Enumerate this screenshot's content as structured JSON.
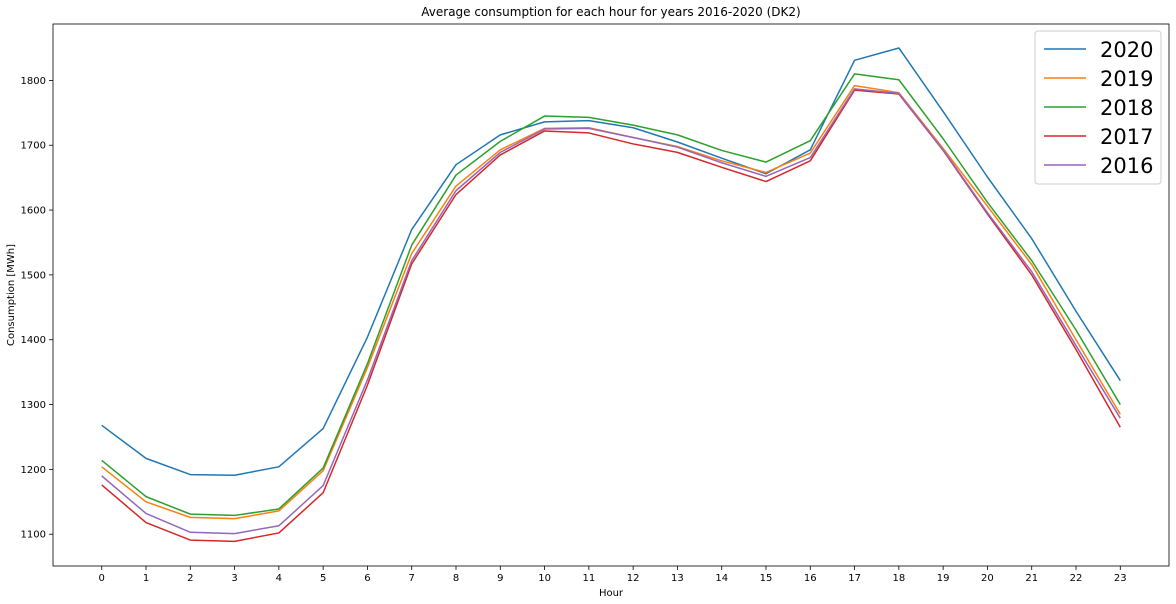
{
  "chart_data": {
    "type": "line",
    "title": "Average consumption for each hour for years 2016-2020 (DK2)",
    "xlabel": "Hour",
    "ylabel": "Consumption [MWh]",
    "x": [
      0,
      1,
      2,
      3,
      4,
      5,
      6,
      7,
      8,
      9,
      10,
      11,
      12,
      13,
      14,
      15,
      16,
      17,
      18,
      19,
      20,
      21,
      22,
      23
    ],
    "xlim": [
      -1.1,
      24.1
    ],
    "ylim": [
      1051,
      1887
    ],
    "yticks": [
      1100,
      1200,
      1300,
      1400,
      1500,
      1600,
      1700,
      1800
    ],
    "grid": false,
    "legend_position": "top-right",
    "series": [
      {
        "name": "2020",
        "color": "#1f77b4",
        "values": [
          1268,
          1217,
          1192,
          1191,
          1204,
          1263,
          1404,
          1570,
          1670,
          1716,
          1736,
          1738,
          1727,
          1705,
          1680,
          1656,
          1693,
          1831,
          1850,
          1752,
          1651,
          1556,
          1444,
          1337
        ]
      },
      {
        "name": "2019",
        "color": "#ff7f0e",
        "values": [
          1204,
          1150,
          1126,
          1124,
          1136,
          1198,
          1357,
          1533,
          1637,
          1693,
          1726,
          1727,
          1712,
          1698,
          1676,
          1658,
          1688,
          1792,
          1781,
          1695,
          1606,
          1516,
          1400,
          1285
        ]
      },
      {
        "name": "2018",
        "color": "#2ca02c",
        "values": [
          1214,
          1158,
          1131,
          1129,
          1139,
          1202,
          1363,
          1546,
          1654,
          1706,
          1745,
          1743,
          1731,
          1716,
          1692,
          1674,
          1707,
          1810,
          1801,
          1710,
          1612,
          1522,
          1415,
          1300
        ]
      },
      {
        "name": "2017",
        "color": "#d62728",
        "values": [
          1176,
          1118,
          1091,
          1089,
          1102,
          1164,
          1330,
          1517,
          1624,
          1685,
          1722,
          1719,
          1702,
          1689,
          1666,
          1644,
          1676,
          1785,
          1779,
          1692,
          1594,
          1500,
          1385,
          1265
        ]
      },
      {
        "name": "2016",
        "color": "#9467bd",
        "values": [
          1190,
          1132,
          1103,
          1101,
          1113,
          1175,
          1338,
          1522,
          1630,
          1689,
          1725,
          1726,
          1712,
          1697,
          1673,
          1652,
          1681,
          1787,
          1780,
          1693,
          1596,
          1505,
          1391,
          1279
        ]
      }
    ]
  }
}
